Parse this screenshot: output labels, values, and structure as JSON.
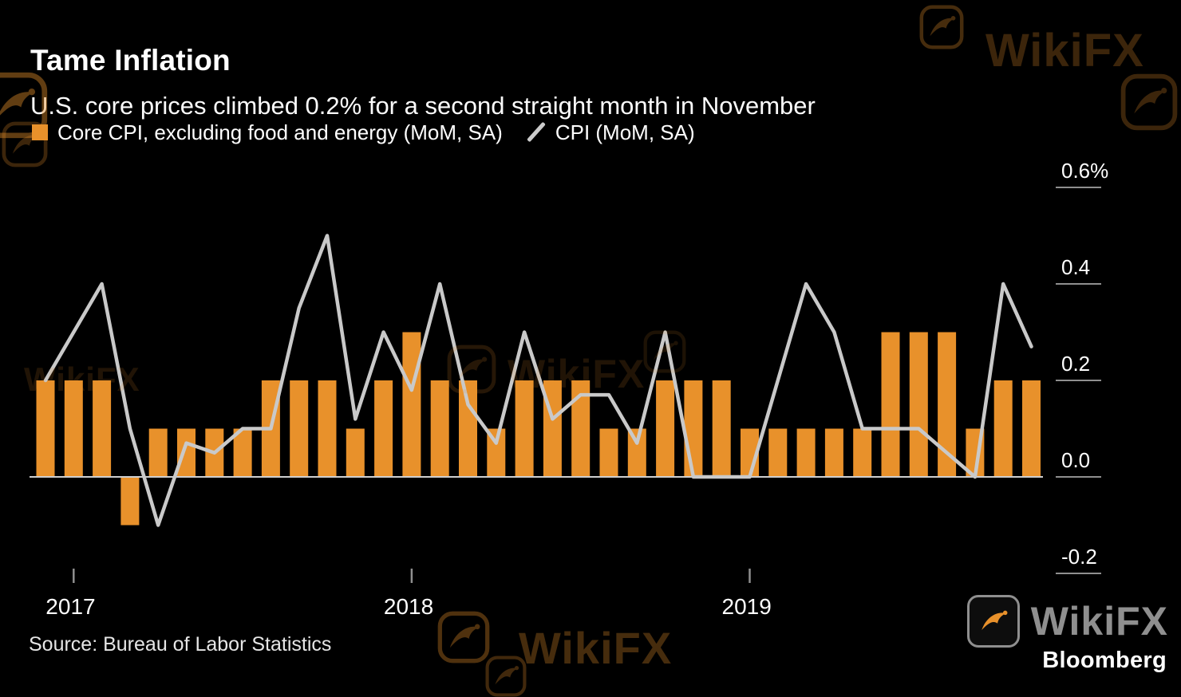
{
  "page": {
    "title": "Tame Inflation",
    "subtitle": "U.S. core prices climbed 0.2% for a second straight month in November",
    "source": "Source: Bureau of Labor Statistics",
    "brand": "Bloomberg",
    "watermark_text": "WikiFX"
  },
  "legend": {
    "bar_label": "Core CPI, excluding food and energy (MoM, SA)",
    "line_label": "CPI (MoM, SA)"
  },
  "colors": {
    "background": "#000000",
    "bar": "#E8912B",
    "line": "#C9C9C9",
    "axis_tick": "#8f8f8f",
    "zero_line": "#cfcfcf",
    "text": "#ffffff",
    "watermark": "#E8912B"
  },
  "chart_data": {
    "type": "bar",
    "title": "Tame Inflation",
    "subtitle": "U.S. core prices climbed 0.2% for a second straight month in November",
    "grid": false,
    "legend_position": "top-left",
    "x": [
      "2016-12",
      "2017-01",
      "2017-02",
      "2017-03",
      "2017-04",
      "2017-05",
      "2017-06",
      "2017-07",
      "2017-08",
      "2017-09",
      "2017-10",
      "2017-11",
      "2017-12",
      "2018-01",
      "2018-02",
      "2018-03",
      "2018-04",
      "2018-05",
      "2018-06",
      "2018-07",
      "2018-08",
      "2018-09",
      "2018-10",
      "2018-11",
      "2018-12",
      "2019-01",
      "2019-02",
      "2019-03",
      "2019-04",
      "2019-05",
      "2019-06",
      "2019-07",
      "2019-08",
      "2019-09",
      "2019-10",
      "2019-11"
    ],
    "series": [
      {
        "name": "Core CPI, excluding food and energy (MoM, SA)",
        "type": "bar",
        "color": "#E8912B",
        "values": [
          0.2,
          0.2,
          0.2,
          -0.1,
          0.1,
          0.1,
          0.1,
          0.1,
          0.2,
          0.2,
          0.2,
          0.1,
          0.2,
          0.3,
          0.2,
          0.2,
          0.1,
          0.2,
          0.2,
          0.2,
          0.1,
          0.1,
          0.2,
          0.2,
          0.2,
          0.1,
          0.1,
          0.1,
          0.1,
          0.1,
          0.3,
          0.3,
          0.3,
          0.1,
          0.2,
          0.2
        ]
      },
      {
        "name": "CPI (MoM, SA)",
        "type": "line",
        "color": "#C9C9C9",
        "values": [
          0.2,
          0.3,
          0.4,
          0.1,
          -0.1,
          0.07,
          0.05,
          0.1,
          0.1,
          0.35,
          0.5,
          0.12,
          0.3,
          0.18,
          0.4,
          0.15,
          0.07,
          0.3,
          0.12,
          0.17,
          0.17,
          0.07,
          0.3,
          0.0,
          0.0,
          0.0,
          0.2,
          0.4,
          0.3,
          0.1,
          0.1,
          0.1,
          0.05,
          0.0,
          0.4,
          0.27
        ]
      }
    ],
    "ylim": [
      -0.3,
      0.7
    ],
    "ylabel": "",
    "xlabel": "",
    "yticks": [
      {
        "value": 0.6,
        "label": "0.6%"
      },
      {
        "value": 0.4,
        "label": "0.4"
      },
      {
        "value": 0.2,
        "label": "0.2"
      },
      {
        "value": 0.0,
        "label": "0.0"
      },
      {
        "value": -0.2,
        "label": "-0.2"
      }
    ],
    "xticks": [
      {
        "month_index": 1,
        "label": "2017"
      },
      {
        "month_index": 13,
        "label": "2018"
      },
      {
        "month_index": 25,
        "label": "2019"
      }
    ]
  }
}
